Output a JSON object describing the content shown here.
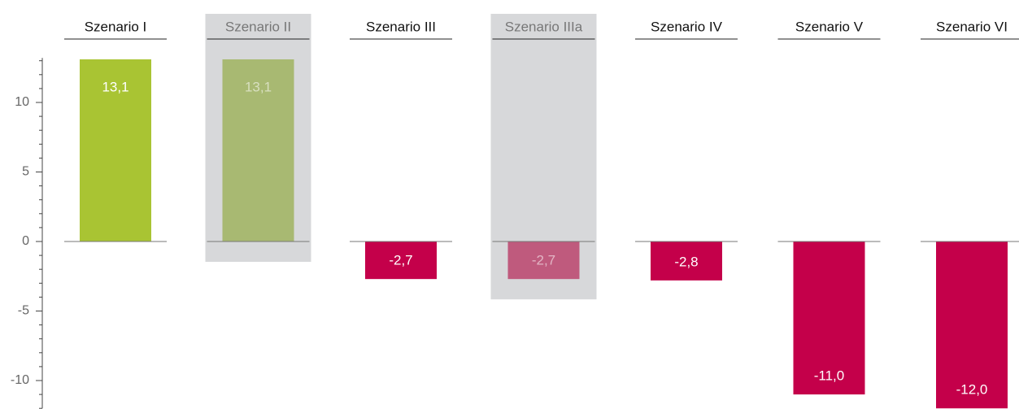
{
  "chart_data": {
    "type": "bar",
    "categories": [
      "Szenario I",
      "Szenario II",
      "Szenario III",
      "Szenario IIIa",
      "Szenario IV",
      "Szenario V",
      "Szenario VI"
    ],
    "values": [
      13.1,
      13.1,
      -2.7,
      -2.7,
      -2.8,
      -11.0,
      -12.0
    ],
    "value_labels": [
      "13,1",
      "13,1",
      "-2,7",
      "-2,7",
      "-2,8",
      "-11,0",
      "-12,0"
    ],
    "colors": [
      "#a9c433",
      "#a8b972",
      "#c4004a",
      "#bf5a7d",
      "#c4004a",
      "#c4004a",
      "#c4004a"
    ],
    "highlighted": [
      false,
      true,
      false,
      true,
      false,
      false,
      false
    ],
    "ylim": [
      -12,
      13.2
    ],
    "yticks": [
      -10,
      -5,
      0,
      5,
      10
    ],
    "yminor_ticks": [
      -12,
      -11,
      -10,
      -9,
      -8,
      -7,
      -6,
      -5,
      -4,
      -3,
      -2,
      -1,
      0,
      1,
      2,
      3,
      4,
      5,
      6,
      7,
      8,
      9,
      10,
      11,
      12,
      13
    ]
  }
}
